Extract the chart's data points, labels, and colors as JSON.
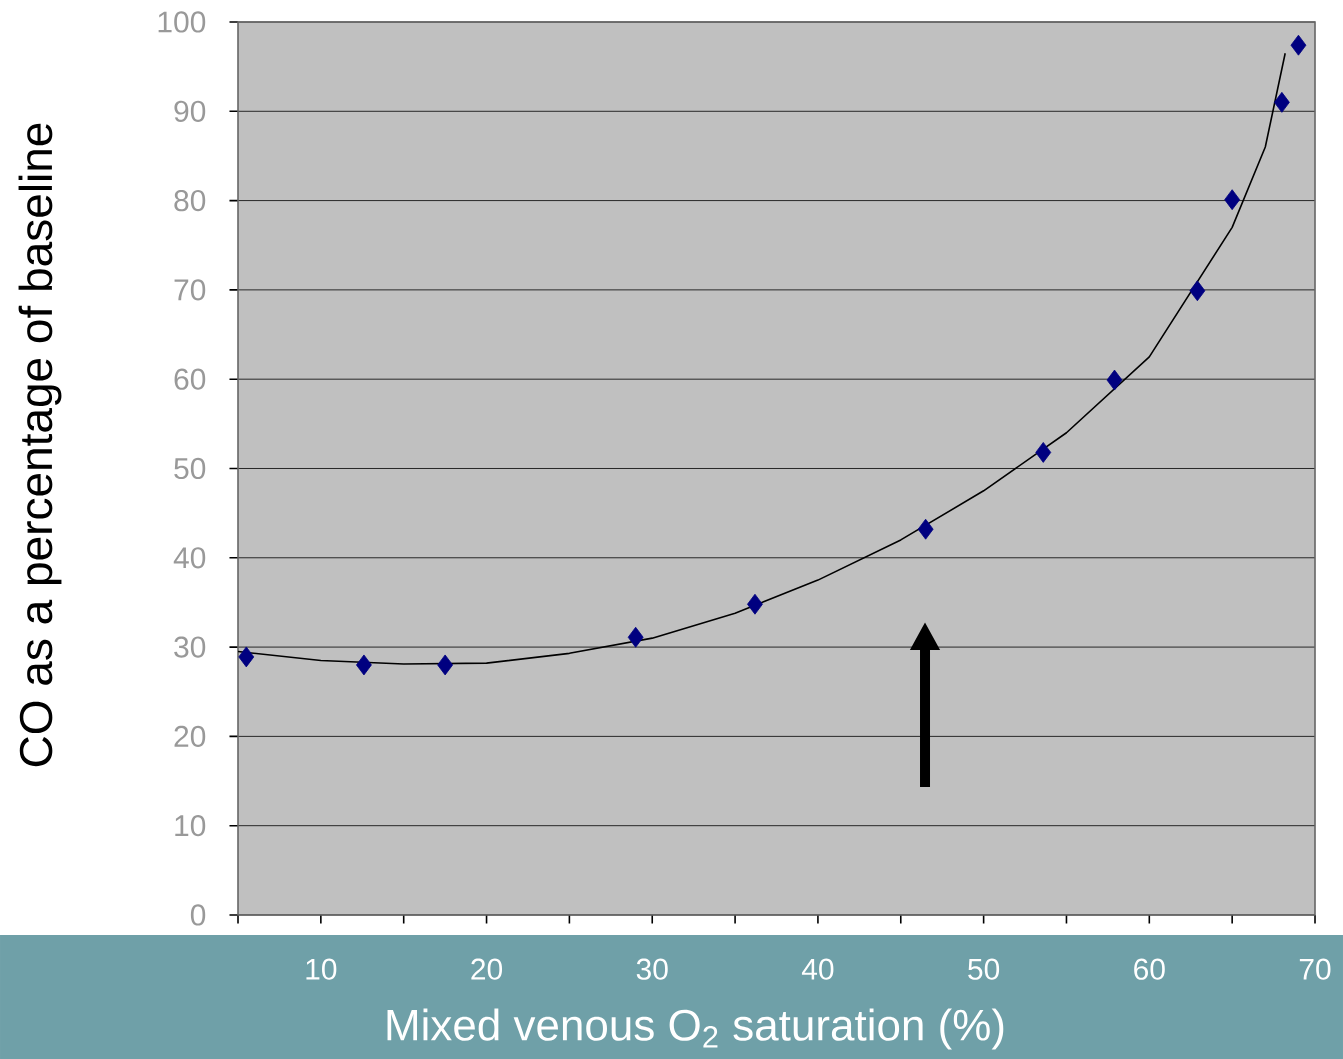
{
  "chart_data": {
    "type": "scatter",
    "xlabel": "Mixed venous O$_{2}$ saturation (%)",
    "ylabel": "CO as a percentage of baseline",
    "xlim": [
      5,
      70
    ],
    "xticks": [
      {
        "value": 5,
        "label": null
      },
      10,
      {
        "value": 15,
        "label": null
      },
      20,
      {
        "value": 25,
        "label": null
      },
      30,
      {
        "value": 35,
        "label": null
      },
      40,
      {
        "value": 45,
        "label": null
      },
      50,
      {
        "value": 55,
        "label": null
      },
      60,
      {
        "value": 65,
        "label": null
      },
      70
    ],
    "ylim": [
      0,
      100
    ],
    "yticks": [
      0,
      10,
      20,
      30,
      40,
      50,
      60,
      70,
      80,
      90,
      100
    ],
    "grid": "y",
    "marker": "diamond",
    "series": [
      {
        "color": "#000080",
        "x": [
          5.5,
          12.6,
          17.5,
          29.0,
          36.2,
          46.5,
          53.6,
          57.9,
          62.9,
          65.0,
          68.0,
          69.0
        ],
        "values": [
          28.9,
          28.0,
          28.0,
          31.1,
          34.8,
          43.2,
          51.8,
          59.9,
          69.9,
          80.1,
          91.0,
          97.4
        ]
      },
      {
        "type": "line",
        "marker": "none",
        "color": "#000000",
        "x": [
          5,
          10,
          15,
          20,
          25,
          30,
          35,
          40,
          45,
          50,
          55,
          60,
          65,
          67,
          68.2
        ],
        "values": [
          29.5,
          28.5,
          28.1,
          28.2,
          29.3,
          31,
          33.8,
          37.5,
          42,
          47.5,
          54,
          62.5,
          77,
          86,
          96.5
        ]
      }
    ]
  }
}
